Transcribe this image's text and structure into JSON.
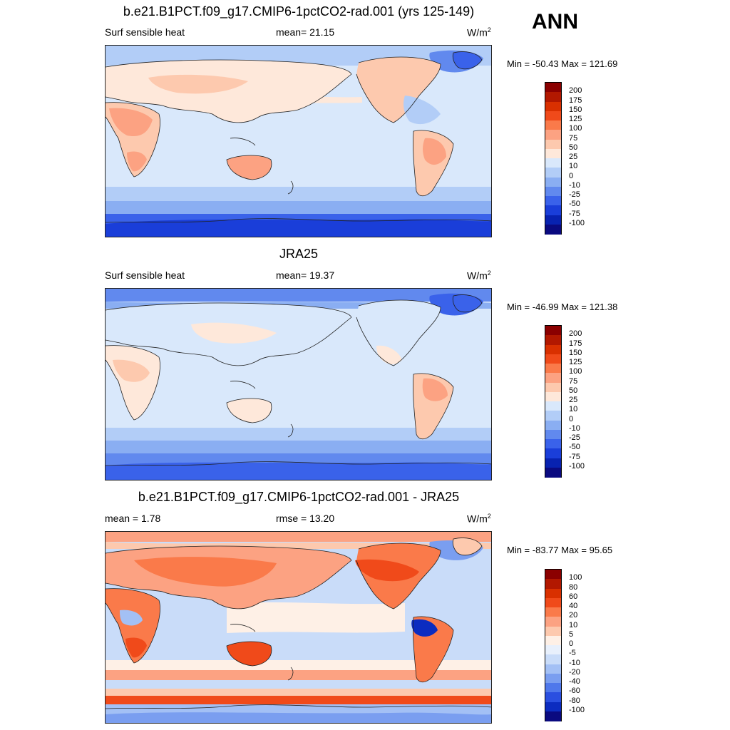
{
  "header": {
    "ann_label": "ANN"
  },
  "panels": [
    {
      "title": "b.e21.B1PCT.f09_g17.CMIP6-1pctCO2-rad.001 (yrs 125-149)",
      "left_label": "Surf sensible heat",
      "center_label": "mean=  21.15",
      "units": "W/m",
      "units_sup": "2",
      "minmax": "Min = -50.43 Max = 121.69",
      "colorbar": {
        "labels": [
          "200",
          "175",
          "150",
          "125",
          "100",
          "75",
          "50",
          "25",
          "10",
          "0",
          "-10",
          "-25",
          "-50",
          "-75",
          "-100"
        ],
        "colors": [
          "#8b0000",
          "#b21800",
          "#d93000",
          "#f04a1a",
          "#fa7a4a",
          "#fca282",
          "#fdc9ae",
          "#fee8da",
          "#d9e8fb",
          "#b2cdf7",
          "#8aaef2",
          "#6189ee",
          "#3a62ea",
          "#1a3ed9",
          "#0822b0",
          "#0a0a80"
        ]
      }
    },
    {
      "title": "JRA25",
      "left_label": "Surf sensible heat",
      "center_label": "mean=  19.37",
      "units": "W/m",
      "units_sup": "2",
      "minmax": "Min = -46.99 Max = 121.38",
      "colorbar": {
        "labels": [
          "200",
          "175",
          "150",
          "125",
          "100",
          "75",
          "50",
          "25",
          "10",
          "0",
          "-10",
          "-25",
          "-50",
          "-75",
          "-100"
        ],
        "colors": [
          "#8b0000",
          "#b21800",
          "#d93000",
          "#f04a1a",
          "#fa7a4a",
          "#fca282",
          "#fdc9ae",
          "#fee8da",
          "#d9e8fb",
          "#b2cdf7",
          "#8aaef2",
          "#6189ee",
          "#3a62ea",
          "#1a3ed9",
          "#0822b0",
          "#0a0a80"
        ]
      }
    },
    {
      "title": "b.e21.B1PCT.f09_g17.CMIP6-1pctCO2-rad.001 - JRA25",
      "left_label": "mean =   1.78",
      "center_label": "rmse =  13.20",
      "units": "W/m",
      "units_sup": "2",
      "minmax": "Min = -83.77 Max =  95.65",
      "colorbar": {
        "labels": [
          "100",
          "80",
          "60",
          "40",
          "20",
          "10",
          "5",
          "0",
          "-5",
          "-10",
          "-20",
          "-40",
          "-60",
          "-80",
          "-100"
        ],
        "colors": [
          "#8b0000",
          "#b21800",
          "#d93000",
          "#f04a1a",
          "#fa7a4a",
          "#fca282",
          "#fdc9ae",
          "#fef0e6",
          "#e8f0fc",
          "#c9dcf9",
          "#a3c0f5",
          "#7a9ef0",
          "#4f78eb",
          "#2a4fe0",
          "#0c2cc0",
          "#0a0a80"
        ]
      }
    }
  ]
}
